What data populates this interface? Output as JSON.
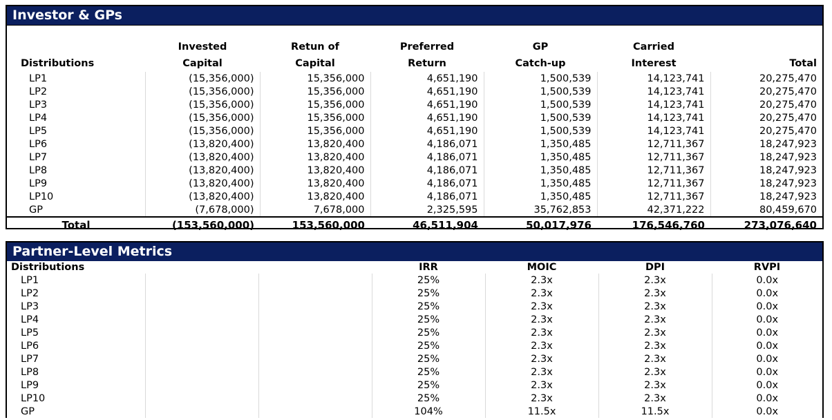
{
  "investor_panel": {
    "title": "Investor & GPs",
    "headers": {
      "col0": [
        "",
        "Distributions"
      ],
      "col1": [
        "Invested",
        "Capital"
      ],
      "col2": [
        "Retun of",
        "Capital"
      ],
      "col3": [
        "Preferred",
        "Return"
      ],
      "col4": [
        "GP",
        "Catch-up"
      ],
      "col5": [
        "Carried",
        "Interest"
      ],
      "col6": [
        "",
        "Total"
      ]
    },
    "rows": [
      [
        "LP1",
        "(15,356,000)",
        "15,356,000",
        "4,651,190",
        "1,500,539",
        "14,123,741",
        "20,275,470"
      ],
      [
        "LP2",
        "(15,356,000)",
        "15,356,000",
        "4,651,190",
        "1,500,539",
        "14,123,741",
        "20,275,470"
      ],
      [
        "LP3",
        "(15,356,000)",
        "15,356,000",
        "4,651,190",
        "1,500,539",
        "14,123,741",
        "20,275,470"
      ],
      [
        "LP4",
        "(15,356,000)",
        "15,356,000",
        "4,651,190",
        "1,500,539",
        "14,123,741",
        "20,275,470"
      ],
      [
        "LP5",
        "(15,356,000)",
        "15,356,000",
        "4,651,190",
        "1,500,539",
        "14,123,741",
        "20,275,470"
      ],
      [
        "LP6",
        "(13,820,400)",
        "13,820,400",
        "4,186,071",
        "1,350,485",
        "12,711,367",
        "18,247,923"
      ],
      [
        "LP7",
        "(13,820,400)",
        "13,820,400",
        "4,186,071",
        "1,350,485",
        "12,711,367",
        "18,247,923"
      ],
      [
        "LP8",
        "(13,820,400)",
        "13,820,400",
        "4,186,071",
        "1,350,485",
        "12,711,367",
        "18,247,923"
      ],
      [
        "LP9",
        "(13,820,400)",
        "13,820,400",
        "4,186,071",
        "1,350,485",
        "12,711,367",
        "18,247,923"
      ],
      [
        "LP10",
        "(13,820,400)",
        "13,820,400",
        "4,186,071",
        "1,350,485",
        "12,711,367",
        "18,247,923"
      ],
      [
        "GP",
        "(7,678,000)",
        "7,678,000",
        "2,325,595",
        "35,762,853",
        "42,371,222",
        "80,459,670"
      ]
    ],
    "total": [
      "Total",
      "(153,560,000)",
      "153,560,000",
      "46,511,904",
      "50,017,976",
      "176,546,760",
      "273,076,640"
    ]
  },
  "metrics_panel": {
    "title": "Partner-Level Metrics",
    "headers": [
      "Distributions",
      "",
      "",
      "IRR",
      "MOIC",
      "DPI",
      "RVPI"
    ],
    "rows": [
      [
        "LP1",
        "25%",
        "2.3x",
        "2.3x",
        "0.0x"
      ],
      [
        "LP2",
        "25%",
        "2.3x",
        "2.3x",
        "0.0x"
      ],
      [
        "LP3",
        "25%",
        "2.3x",
        "2.3x",
        "0.0x"
      ],
      [
        "LP4",
        "25%",
        "2.3x",
        "2.3x",
        "0.0x"
      ],
      [
        "LP5",
        "25%",
        "2.3x",
        "2.3x",
        "0.0x"
      ],
      [
        "LP6",
        "25%",
        "2.3x",
        "2.3x",
        "0.0x"
      ],
      [
        "LP7",
        "25%",
        "2.3x",
        "2.3x",
        "0.0x"
      ],
      [
        "LP8",
        "25%",
        "2.3x",
        "2.3x",
        "0.0x"
      ],
      [
        "LP9",
        "25%",
        "2.3x",
        "2.3x",
        "0.0x"
      ],
      [
        "LP10",
        "25%",
        "2.3x",
        "2.3x",
        "0.0x"
      ],
      [
        "GP",
        "104%",
        "11.5x",
        "11.5x",
        "0.0x"
      ]
    ]
  },
  "colors": {
    "header_bg": "#0b1f5f",
    "header_text": "#ffffff",
    "grid": "#d9d9d9"
  }
}
